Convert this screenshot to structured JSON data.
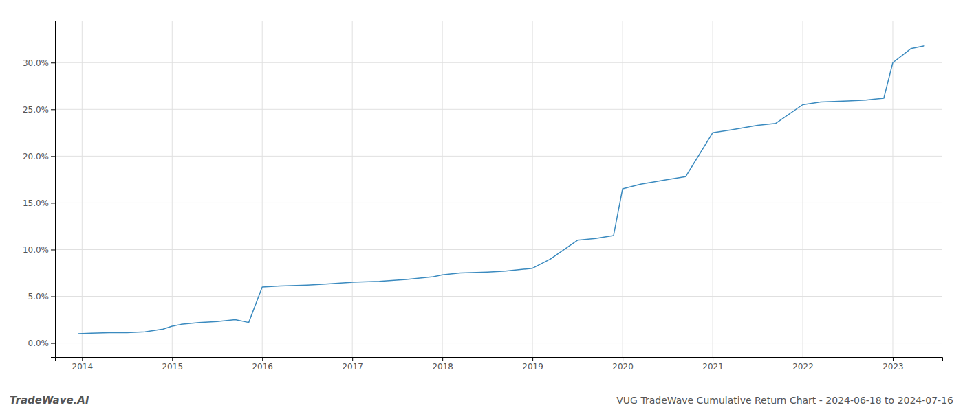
{
  "chart_data": {
    "type": "line",
    "title": "VUG TradeWave Cumulative Return Chart - 2024-06-18 to 2024-07-16",
    "annotations": [
      "TradeWave.AI"
    ],
    "x": [
      2013.96,
      2014.1,
      2014.3,
      2014.5,
      2014.7,
      2014.9,
      2015.0,
      2015.1,
      2015.3,
      2015.5,
      2015.7,
      2015.85,
      2016.0,
      2016.2,
      2016.5,
      2016.7,
      2017.0,
      2017.3,
      2017.6,
      2017.9,
      2018.0,
      2018.2,
      2018.5,
      2018.7,
      2018.9,
      2019.0,
      2019.2,
      2019.5,
      2019.7,
      2019.9,
      2020.0,
      2020.2,
      2020.5,
      2020.7,
      2021.0,
      2021.2,
      2021.5,
      2021.7,
      2022.0,
      2022.2,
      2022.5,
      2022.7,
      2022.9,
      2023.0,
      2023.2,
      2023.35
    ],
    "values": [
      1.0,
      1.05,
      1.1,
      1.1,
      1.2,
      1.5,
      1.8,
      2.0,
      2.2,
      2.3,
      2.5,
      2.2,
      6.0,
      6.1,
      6.2,
      6.3,
      6.5,
      6.6,
      6.8,
      7.1,
      7.3,
      7.5,
      7.6,
      7.7,
      7.9,
      8.0,
      9.0,
      11.0,
      11.2,
      11.5,
      16.5,
      17.0,
      17.5,
      17.8,
      22.5,
      22.8,
      23.3,
      23.5,
      25.5,
      25.8,
      25.9,
      26.0,
      26.2,
      30.0,
      31.5,
      31.8
    ],
    "color": "#3a8abf",
    "xlim": [
      2013.7,
      2023.55
    ],
    "ylim": [
      -1.5,
      34.5
    ],
    "xticks": [
      2014,
      2015,
      2016,
      2017,
      2018,
      2019,
      2020,
      2021,
      2022,
      2023
    ],
    "yticks": [
      {
        "value": 0.0,
        "label": "0.0%"
      },
      {
        "value": 5.0,
        "label": "5.0%"
      },
      {
        "value": 10.0,
        "label": "10.0%"
      },
      {
        "value": 15.0,
        "label": "15.0%"
      },
      {
        "value": 20.0,
        "label": "20.0%"
      },
      {
        "value": 25.0,
        "label": "25.0%"
      },
      {
        "value": 30.0,
        "label": "30.0%"
      }
    ],
    "grid": true
  }
}
